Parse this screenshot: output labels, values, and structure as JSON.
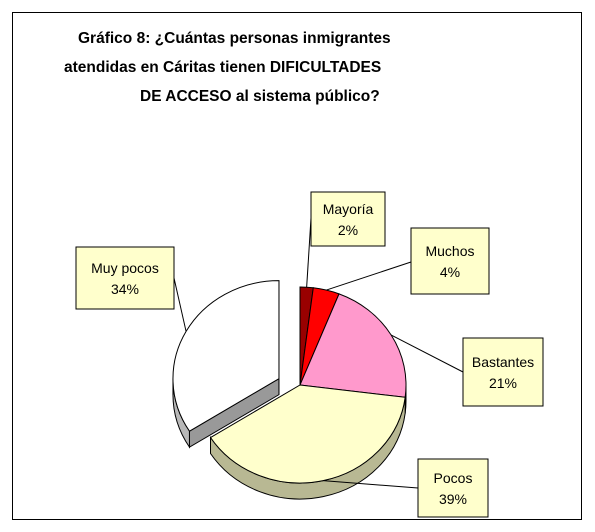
{
  "title_lines": [
    "Gráfico 8: ¿Cuántas personas inmigrantes",
    "atendidas en Cáritas tienen DIFICULTADES",
    "DE ACCESO al sistema público?"
  ],
  "chart_data": {
    "type": "pie",
    "title": "Gráfico 8: ¿Cuántas personas inmigrantes atendidas en Cáritas tienen DIFICULTADES DE ACCESO al sistema público?",
    "labels": [
      "Mayoría",
      "Muchos",
      "Bastantes",
      "Pocos",
      "Muy pocos"
    ],
    "values": [
      2,
      4,
      21,
      39,
      34
    ],
    "value_labels": [
      "2%",
      "4%",
      "21%",
      "39%",
      "34%"
    ],
    "colors": [
      "#990000",
      "#ff0000",
      "#ff99cc",
      "#ffffcc",
      "#ffffff"
    ],
    "exploded": [
      "Muy pocos"
    ],
    "style": "3d"
  }
}
